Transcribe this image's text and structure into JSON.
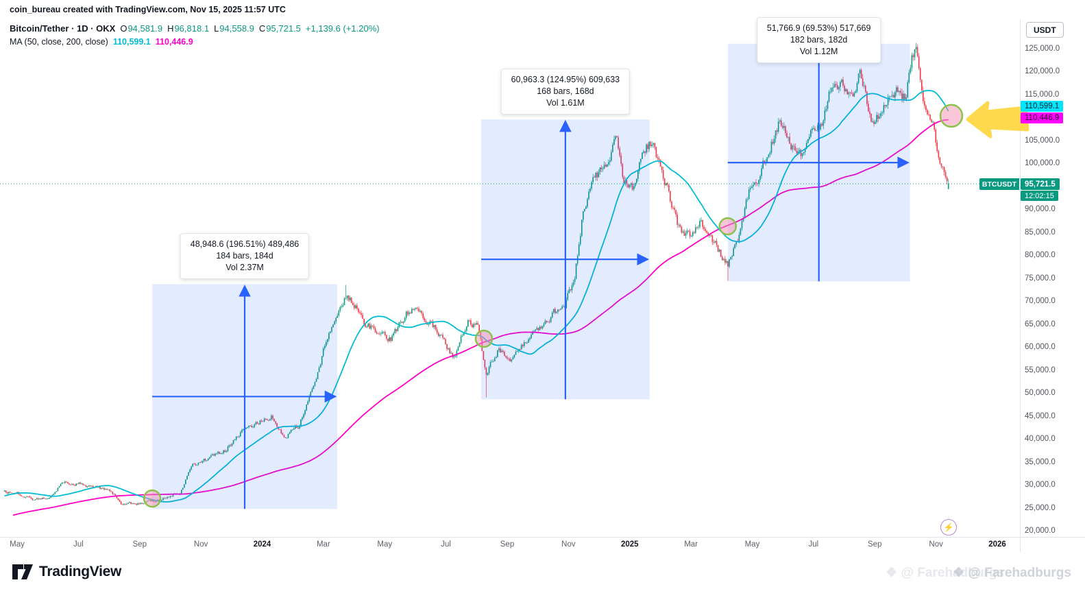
{
  "top_watermark": "coin_bureau created with TradingView.com, Nov 15, 2025 11:57 UTC",
  "header": {
    "symbol_line": "Bitcoin/Tether · 1D · OKX",
    "ohlc": {
      "o_label": "O",
      "o": "94,581.9",
      "h_label": "H",
      "h": "96,818.1",
      "l_label": "L",
      "l": "94,558.9",
      "c_label": "C",
      "c": "95,721.5",
      "change": "+1,139.6 (+1.20%)"
    },
    "ma_label": "MA (50, close, 200, close)",
    "ma50": "110,599.1",
    "ma200": "110,446.9"
  },
  "axis": {
    "currency_button": "USDT",
    "ma50_badge": "110,599.1",
    "ma200_badge": "110,446.9",
    "symbol_badge": "BTCUSDT",
    "last_price_badge": "95,721.5",
    "countdown": "12:02:15"
  },
  "x_axis": [
    {
      "label": "May",
      "year": false
    },
    {
      "label": "Jul",
      "year": false
    },
    {
      "label": "Sep",
      "year": false
    },
    {
      "label": "Nov",
      "year": false
    },
    {
      "label": "2024",
      "year": true
    },
    {
      "label": "Mar",
      "year": false
    },
    {
      "label": "May",
      "year": false
    },
    {
      "label": "Jul",
      "year": false
    },
    {
      "label": "Sep",
      "year": false
    },
    {
      "label": "Nov",
      "year": false
    },
    {
      "label": "2025",
      "year": true
    },
    {
      "label": "Mar",
      "year": false
    },
    {
      "label": "May",
      "year": false
    },
    {
      "label": "Jul",
      "year": false
    },
    {
      "label": "Sep",
      "year": false
    },
    {
      "label": "Nov",
      "year": false
    },
    {
      "label": "2026",
      "year": true
    }
  ],
  "footer": {
    "logo_text": "TradingView",
    "watermark": "@ Farehadburgs"
  },
  "icons": {
    "flash_glyph": "⚡",
    "diamond_glyph": "❖"
  },
  "chart_data": {
    "type": "candlestick",
    "symbol": "BTCUSDT",
    "exchange": "OKX",
    "interval": "1D",
    "quote_currency": "USDT",
    "x_start": "May 2023",
    "x_end": "Nov 15, 2025",
    "y_ticks": [
      125000,
      120000,
      115000,
      110000,
      105000,
      100000,
      95000,
      90000,
      85000,
      80000,
      75000,
      70000,
      65000,
      60000,
      55000,
      50000,
      45000,
      40000,
      35000,
      30000,
      25000,
      20000
    ],
    "last_bar": {
      "o": 94581.9,
      "h": 96818.1,
      "l": 94558.9,
      "c": 95721.5,
      "change": 1139.6,
      "change_pct": 1.2
    },
    "last_price": 95721.5,
    "ma50_value": 110599.1,
    "ma200_value": 110446.9,
    "colors": {
      "up": "#089981",
      "down": "#F23645",
      "ma50": "#00BCD4",
      "ma200": "#FF00C8",
      "tool": "#2962FF",
      "box_fill": "rgba(41,98,255,0.13)",
      "highlight": "#FFD94D"
    },
    "anchors_note": "m = months since 2023-05-01 (negative = off-screen warmup); p = approx BTCUSDT close",
    "anchors": [
      [
        -7,
        17000
      ],
      [
        -4,
        22500
      ],
      [
        -2,
        25500
      ],
      [
        -1,
        29000
      ],
      [
        0,
        28300
      ],
      [
        0.5,
        27200
      ],
      [
        1,
        27100
      ],
      [
        1.5,
        30600
      ],
      [
        2,
        30400
      ],
      [
        2.5,
        29600
      ],
      [
        3,
        29300
      ],
      [
        3.4,
        26100
      ],
      [
        4,
        26000
      ],
      [
        4.7,
        26900
      ],
      [
        5.3,
        28300
      ],
      [
        5.75,
        34500
      ],
      [
        6.3,
        36200
      ],
      [
        6.8,
        37600
      ],
      [
        7.3,
        41600
      ],
      [
        7.9,
        43700
      ],
      [
        8.3,
        45100
      ],
      [
        8.7,
        40300
      ],
      [
        9.2,
        43100
      ],
      [
        9.8,
        54000
      ],
      [
        10.1,
        62100
      ],
      [
        10.5,
        68200
      ],
      [
        10.75,
        71300
      ],
      [
        11,
        69900
      ],
      [
        11.3,
        65300
      ],
      [
        11.8,
        63700
      ],
      [
        12.2,
        61900
      ],
      [
        12.7,
        67600
      ],
      [
        13.1,
        68300
      ],
      [
        13.6,
        64700
      ],
      [
        14,
        60900
      ],
      [
        14.25,
        57300
      ],
      [
        14.7,
        65800
      ],
      [
        15.05,
        64500
      ],
      [
        15.3,
        54400
      ],
      [
        15.7,
        59400
      ],
      [
        16.1,
        57400
      ],
      [
        16.5,
        60300
      ],
      [
        17,
        63800
      ],
      [
        17.5,
        67400
      ],
      [
        17.9,
        69600
      ],
      [
        18.2,
        75500
      ],
      [
        18.5,
        90600
      ],
      [
        18.9,
        97200
      ],
      [
        19.3,
        101200
      ],
      [
        19.55,
        105900
      ],
      [
        19.8,
        95600
      ],
      [
        20.1,
        94400
      ],
      [
        20.4,
        102400
      ],
      [
        20.7,
        104900
      ],
      [
        21.1,
        97600
      ],
      [
        21.6,
        86200
      ],
      [
        22,
        84300
      ],
      [
        22.3,
        86900
      ],
      [
        22.8,
        82400
      ],
      [
        23.2,
        78200
      ],
      [
        23.6,
        85200
      ],
      [
        23.9,
        94400
      ],
      [
        24.2,
        97100
      ],
      [
        24.6,
        103900
      ],
      [
        24.9,
        109600
      ],
      [
        25.2,
        104400
      ],
      [
        25.6,
        101600
      ],
      [
        25.9,
        107400
      ],
      [
        26.3,
        108900
      ],
      [
        26.6,
        117900
      ],
      [
        27,
        116400
      ],
      [
        27.3,
        114200
      ],
      [
        27.5,
        120800
      ],
      [
        27.9,
        109300
      ],
      [
        28.2,
        111600
      ],
      [
        28.6,
        116400
      ],
      [
        29,
        114100
      ],
      [
        29.2,
        122400
      ],
      [
        29.35,
        124900
      ],
      [
        29.6,
        110900
      ],
      [
        29.9,
        109800
      ],
      [
        30.1,
        101400
      ],
      [
        30.3,
        96600
      ],
      [
        30.45,
        95721.5
      ]
    ],
    "wick_events": [
      {
        "m": 10.75,
        "type": "high",
        "p": 73700
      },
      {
        "m": 15.3,
        "type": "low",
        "p": 49200
      },
      {
        "m": 23.22,
        "type": "low",
        "p": 74600
      },
      {
        "m": 29.35,
        "type": "high",
        "p": 126100
      }
    ],
    "measurements": [
      {
        "label_lines": [
          "48,948.6 (196.51%) 489,486",
          "184 bars, 184d",
          "Vol 2.37M"
        ],
        "m_start": 4.41,
        "m_end": 10.45,
        "p_start": 24909,
        "p_end": 73858
      },
      {
        "label_lines": [
          "60,963.3 (124.95%) 609,633",
          "168 bars, 168d",
          "Vol 1.61M"
        ],
        "m_start": 15.15,
        "m_end": 20.65,
        "p_start": 48790,
        "p_end": 109753
      },
      {
        "label_lines": [
          "51,766.9 (69.53%) 517,669",
          "182 bars, 182d",
          "Vol 1.12M"
        ],
        "m_start": 23.2,
        "m_end": 29.15,
        "p_start": 74452,
        "p_end": 126219
      }
    ],
    "cross_markers": [
      {
        "m": 4.41,
        "p": 27170,
        "r": 12
      },
      {
        "m": 15.24,
        "p": 61970,
        "r": 12
      },
      {
        "m": 23.2,
        "p": 86465,
        "r": 12
      },
      {
        "m": 30.5,
        "p": 110520,
        "r": 16
      }
    ]
  }
}
